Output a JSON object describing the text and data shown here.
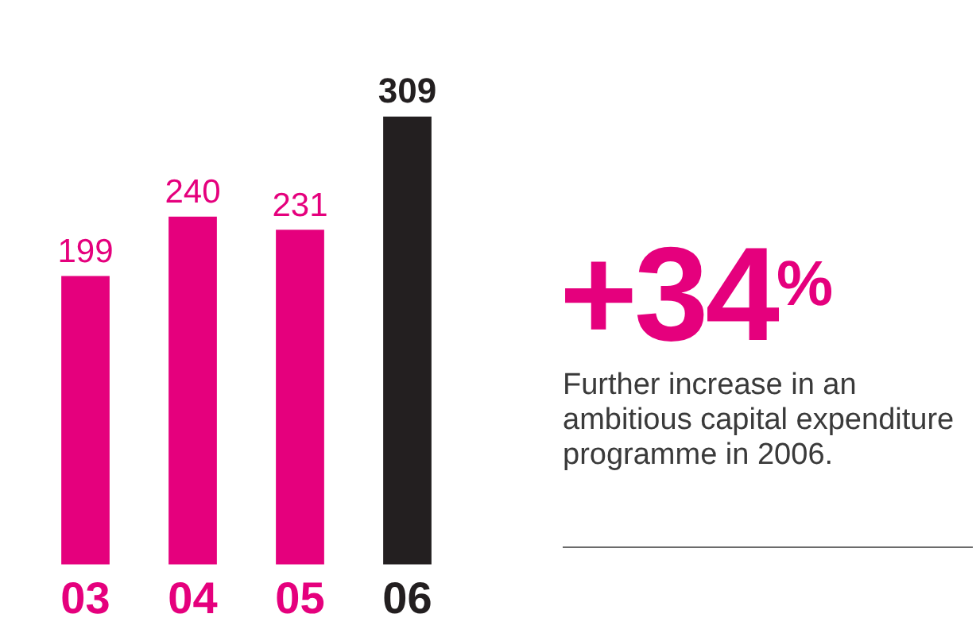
{
  "chart_data": {
    "type": "bar",
    "categories": [
      "03",
      "04",
      "05",
      "06"
    ],
    "values": [
      199,
      240,
      231,
      309
    ],
    "colors": [
      "#e5007d",
      "#e5007d",
      "#e5007d",
      "#231f20"
    ],
    "data_labels": true,
    "grid": false,
    "legend": false,
    "annotations": [
      "+34$^{%}$",
      "Further increase in an ambitious capital expenditure programme in 2006."
    ]
  }
}
